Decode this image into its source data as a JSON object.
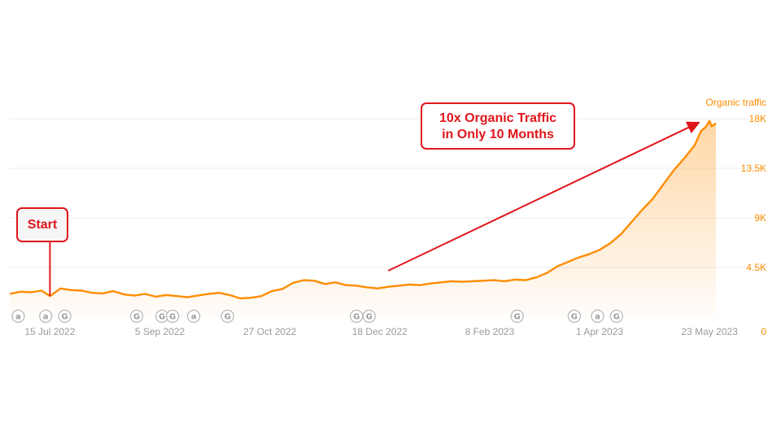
{
  "chart_data": {
    "type": "area",
    "series": [
      {
        "name": "Organic traffic",
        "color": "#ff8c00",
        "points": [
          [
            "2022-06-26",
            2100
          ],
          [
            "2022-07-01",
            2300
          ],
          [
            "2022-07-06",
            2250
          ],
          [
            "2022-07-11",
            2400
          ],
          [
            "2022-07-15",
            1900
          ],
          [
            "2022-07-20",
            2600
          ],
          [
            "2022-07-25",
            2450
          ],
          [
            "2022-07-30",
            2400
          ],
          [
            "2022-08-04",
            2200
          ],
          [
            "2022-08-09",
            2150
          ],
          [
            "2022-08-14",
            2350
          ],
          [
            "2022-08-19",
            2050
          ],
          [
            "2022-08-24",
            1950
          ],
          [
            "2022-08-29",
            2100
          ],
          [
            "2022-09-03",
            1850
          ],
          [
            "2022-09-08",
            2000
          ],
          [
            "2022-09-13",
            1900
          ],
          [
            "2022-09-18",
            1800
          ],
          [
            "2022-09-23",
            1950
          ],
          [
            "2022-09-28",
            2100
          ],
          [
            "2022-10-03",
            2200
          ],
          [
            "2022-10-08",
            2000
          ],
          [
            "2022-10-13",
            1700
          ],
          [
            "2022-10-18",
            1750
          ],
          [
            "2022-10-23",
            1900
          ],
          [
            "2022-10-28",
            2350
          ],
          [
            "2022-11-02",
            2550
          ],
          [
            "2022-11-07",
            3100
          ],
          [
            "2022-11-12",
            3350
          ],
          [
            "2022-11-17",
            3300
          ],
          [
            "2022-11-22",
            3000
          ],
          [
            "2022-11-27",
            3150
          ],
          [
            "2022-12-02",
            2900
          ],
          [
            "2022-12-07",
            2850
          ],
          [
            "2022-12-12",
            2700
          ],
          [
            "2022-12-17",
            2600
          ],
          [
            "2022-12-22",
            2750
          ],
          [
            "2022-12-27",
            2850
          ],
          [
            "2023-01-01",
            2950
          ],
          [
            "2023-01-06",
            2900
          ],
          [
            "2023-01-11",
            3050
          ],
          [
            "2023-01-16",
            3150
          ],
          [
            "2023-01-21",
            3250
          ],
          [
            "2023-01-26",
            3200
          ],
          [
            "2023-01-31",
            3250
          ],
          [
            "2023-02-05",
            3300
          ],
          [
            "2023-02-10",
            3350
          ],
          [
            "2023-02-15",
            3250
          ],
          [
            "2023-02-20",
            3400
          ],
          [
            "2023-02-25",
            3350
          ],
          [
            "2023-03-02",
            3600
          ],
          [
            "2023-03-07",
            4000
          ],
          [
            "2023-03-12",
            4600
          ],
          [
            "2023-03-17",
            5000
          ],
          [
            "2023-03-22",
            5400
          ],
          [
            "2023-03-27",
            5700
          ],
          [
            "2023-04-01",
            6100
          ],
          [
            "2023-04-06",
            6700
          ],
          [
            "2023-04-11",
            7500
          ],
          [
            "2023-04-16",
            8600
          ],
          [
            "2023-04-21",
            9700
          ],
          [
            "2023-04-26",
            10700
          ],
          [
            "2023-05-01",
            12000
          ],
          [
            "2023-05-06",
            13300
          ],
          [
            "2023-05-11",
            14400
          ],
          [
            "2023-05-16",
            15600
          ],
          [
            "2023-05-19",
            16900
          ],
          [
            "2023-05-21",
            17200
          ],
          [
            "2023-05-23",
            17800
          ],
          [
            "2023-05-24",
            17300
          ],
          [
            "2023-05-26",
            17600
          ]
        ]
      }
    ],
    "title": "",
    "xlabel": "",
    "ylabel": "Organic traffic",
    "x_ticks": [
      "15 Jul 2022",
      "5 Sep 2022",
      "27 Oct 2022",
      "18 Dec 2022",
      "8 Feb 2023",
      "1 Apr 2023",
      "23 May 2023"
    ],
    "x_tick_dates": [
      "2022-07-15",
      "2022-09-05",
      "2022-10-27",
      "2022-12-18",
      "2023-02-08",
      "2023-04-01",
      "2023-05-23"
    ],
    "y_ticks": [
      "0",
      "4.5K",
      "9K",
      "13.5K",
      "18K"
    ],
    "y_tick_values": [
      0,
      4500,
      9000,
      13500,
      18000
    ],
    "xlim": [
      "2022-06-26",
      "2023-05-26"
    ],
    "ylim": [
      0,
      18000
    ],
    "grid": true,
    "legend": "none",
    "annotation_markers": [
      {
        "symbol": "a",
        "date": "2022-06-30"
      },
      {
        "symbol": "a",
        "date": "2022-07-13"
      },
      {
        "symbol": "G",
        "date": "2022-07-22"
      },
      {
        "symbol": "G",
        "date": "2022-08-25"
      },
      {
        "symbol": "G",
        "date": "2022-09-06"
      },
      {
        "symbol": "G",
        "date": "2022-09-11"
      },
      {
        "symbol": "a",
        "date": "2022-09-21"
      },
      {
        "symbol": "G",
        "date": "2022-10-07"
      },
      {
        "symbol": "G",
        "date": "2022-12-07"
      },
      {
        "symbol": "G",
        "date": "2022-12-13"
      },
      {
        "symbol": "G",
        "date": "2023-02-21"
      },
      {
        "symbol": "G",
        "date": "2023-03-20"
      },
      {
        "symbol": "a",
        "date": "2023-03-31"
      },
      {
        "symbol": "G",
        "date": "2023-04-09"
      }
    ]
  },
  "annotations": {
    "main_callout_line1": "10x Organic Traffic",
    "main_callout_line2": "in Only 10 Months",
    "start_label": "Start",
    "accent_color": "#e0161b"
  }
}
